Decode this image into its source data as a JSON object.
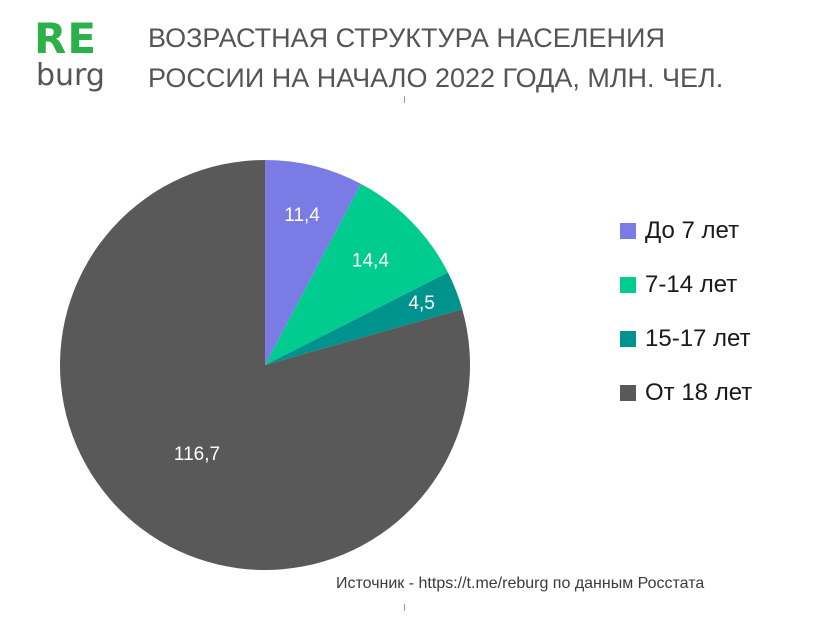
{
  "logo": {
    "main": "RE",
    "sub": "burg",
    "color": "#2bb04a"
  },
  "title_lines": [
    "ВОЗРАСТНАЯ СТРУКТУРА НАСЕЛЕНИЯ",
    "РОССИИ НА НАЧАЛО 2022 ГОДА, МЛН. ЧЕЛ."
  ],
  "chart_data": {
    "type": "pie",
    "title": "ВОЗРАСТНАЯ СТРУКТУРА НАСЕЛЕНИЯ РОССИИ НА НАЧАЛО 2022 ГОДА, МЛН. ЧЕЛ.",
    "categories": [
      "До 7 лет",
      "7-14 лет",
      "15-17 лет",
      "От 18 лет"
    ],
    "values": [
      11.4,
      14.4,
      4.5,
      116.7
    ],
    "labels": [
      "11,4",
      "14,4",
      "4,5",
      "116,7"
    ],
    "colors": [
      "#7b7be6",
      "#00cc8f",
      "#00938d",
      "#595959"
    ],
    "start_angle": "12 o'clock",
    "direction": "clockwise",
    "legend_position": "right"
  },
  "source": "Источник -  https://t.me/reburg по данным Росстата"
}
